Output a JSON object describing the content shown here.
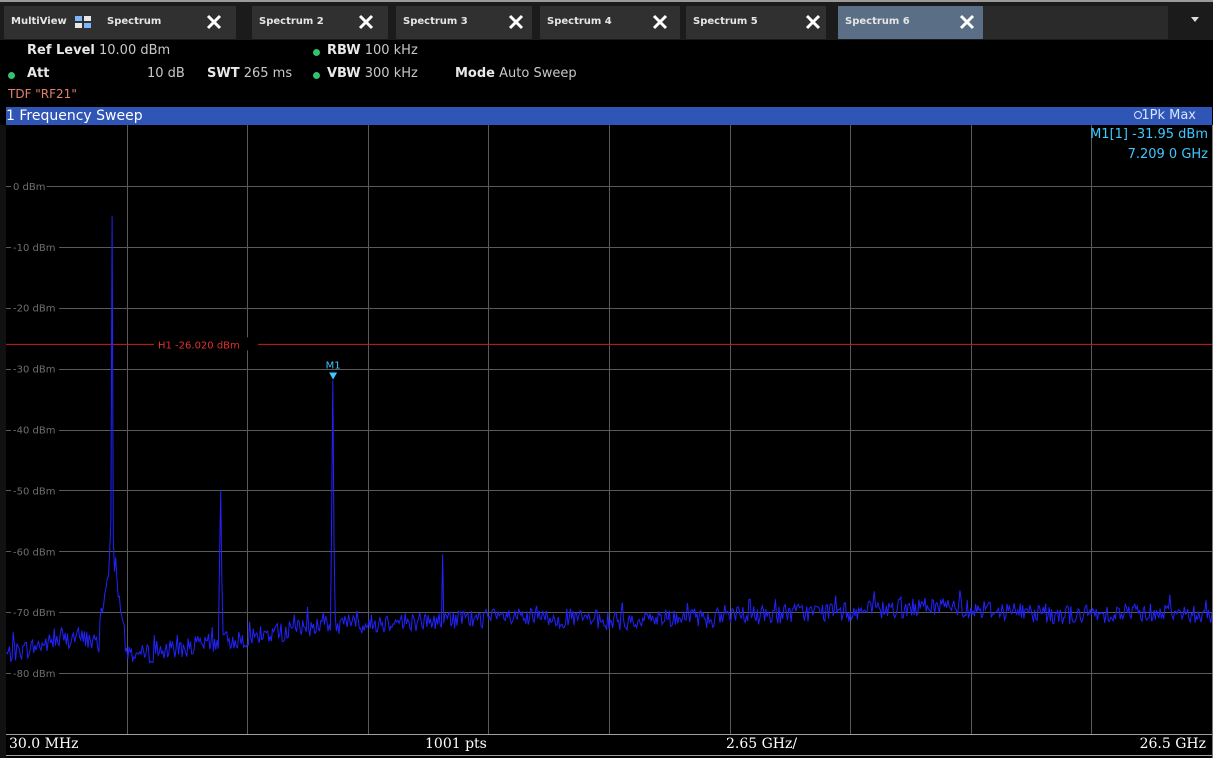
{
  "tabs": [
    {
      "label": "MultiView",
      "closable": false,
      "active": false
    },
    {
      "label": "Spectrum",
      "closable": true,
      "active": false
    },
    {
      "label": "Spectrum 2",
      "closable": true,
      "active": false
    },
    {
      "label": "Spectrum 3",
      "closable": true,
      "active": false
    },
    {
      "label": "Spectrum 4",
      "closable": true,
      "active": false
    },
    {
      "label": "Spectrum 5",
      "closable": true,
      "active": false
    },
    {
      "label": "Spectrum 6",
      "closable": true,
      "active": true
    }
  ],
  "settings": {
    "ref_level_label": "Ref Level",
    "ref_level_value": "10.00 dBm",
    "att_label": "Att",
    "att_value": "10 dB",
    "swt_label": "SWT",
    "swt_value": "265 ms",
    "rbw_label": "RBW",
    "rbw_value": "100 kHz",
    "vbw_label": "VBW",
    "vbw_value": "300 kHz",
    "mode_label": "Mode",
    "mode_value": "Auto Sweep",
    "tdf": "TDF \"RF21\"",
    "indicator_color": "#31c26a"
  },
  "window": {
    "title": "1 Frequency Sweep",
    "trace_label": "1Pk Max",
    "bar_color": "#2f55b6"
  },
  "marker": {
    "readout_label": "M1[1]",
    "readout_level": "-31.95 dBm",
    "readout_freq": "7.209 0 GHz",
    "name": "M1",
    "x_ghz": 7.209,
    "y_dbm": -31.95,
    "color": "#3ec8ff"
  },
  "footer": {
    "start": "30.0 MHz",
    "points": "1001 pts",
    "span_per_div": "2.65 GHz/",
    "stop": "26.5 GHz"
  },
  "chart_data": {
    "type": "line",
    "x_unit": "GHz",
    "y_unit": "dBm",
    "xlim": [
      0.03,
      26.5
    ],
    "ylim": [
      -90,
      10
    ],
    "y_ticks": [
      "0 dBm",
      "-10 dBm",
      "-20 dBm",
      "-30 dBm",
      "-40 dBm",
      "-50 dBm",
      "-60 dBm",
      "-70 dBm",
      "-80 dBm"
    ],
    "y_tick_values": [
      0,
      -10,
      -20,
      -30,
      -40,
      -50,
      -60,
      -70,
      -80
    ],
    "grid": true,
    "trace_color": "#2222ff",
    "hline": {
      "label": "H1 -26.020 dBm",
      "value": -26.02,
      "color": "#cc1d1d"
    },
    "noise_floor": [
      [
        0.03,
        -77
      ],
      [
        0.5,
        -76
      ],
      [
        1.0,
        -75
      ],
      [
        1.6,
        -74
      ],
      [
        2.3,
        -76
      ],
      [
        3.0,
        -77
      ],
      [
        3.8,
        -76
      ],
      [
        4.6,
        -75
      ],
      [
        5.5,
        -74
      ],
      [
        6.3,
        -73
      ],
      [
        7.0,
        -72
      ],
      [
        7.8,
        -72
      ],
      [
        8.6,
        -71.5
      ],
      [
        9.5,
        -71.5
      ],
      [
        10.5,
        -71
      ],
      [
        11.5,
        -71
      ],
      [
        12.5,
        -71
      ],
      [
        13.5,
        -71.5
      ],
      [
        14.5,
        -71
      ],
      [
        15.5,
        -71
      ],
      [
        16.5,
        -70.5
      ],
      [
        17.5,
        -70
      ],
      [
        18.5,
        -70
      ],
      [
        19.5,
        -69.5
      ],
      [
        20.5,
        -69
      ],
      [
        21.5,
        -69.5
      ],
      [
        22.5,
        -70
      ],
      [
        23.5,
        -70.5
      ],
      [
        24.5,
        -70
      ],
      [
        25.5,
        -70
      ],
      [
        26.5,
        -70.5
      ]
    ],
    "peaks": [
      {
        "x": 2.35,
        "y": -5.0
      },
      {
        "x": 2.3,
        "y": -60.0
      },
      {
        "x": 2.45,
        "y": -61.0
      },
      {
        "x": 4.75,
        "y": -50.0
      },
      {
        "x": 7.209,
        "y": -31.95
      },
      {
        "x": 9.6,
        "y": -60.5
      }
    ]
  }
}
